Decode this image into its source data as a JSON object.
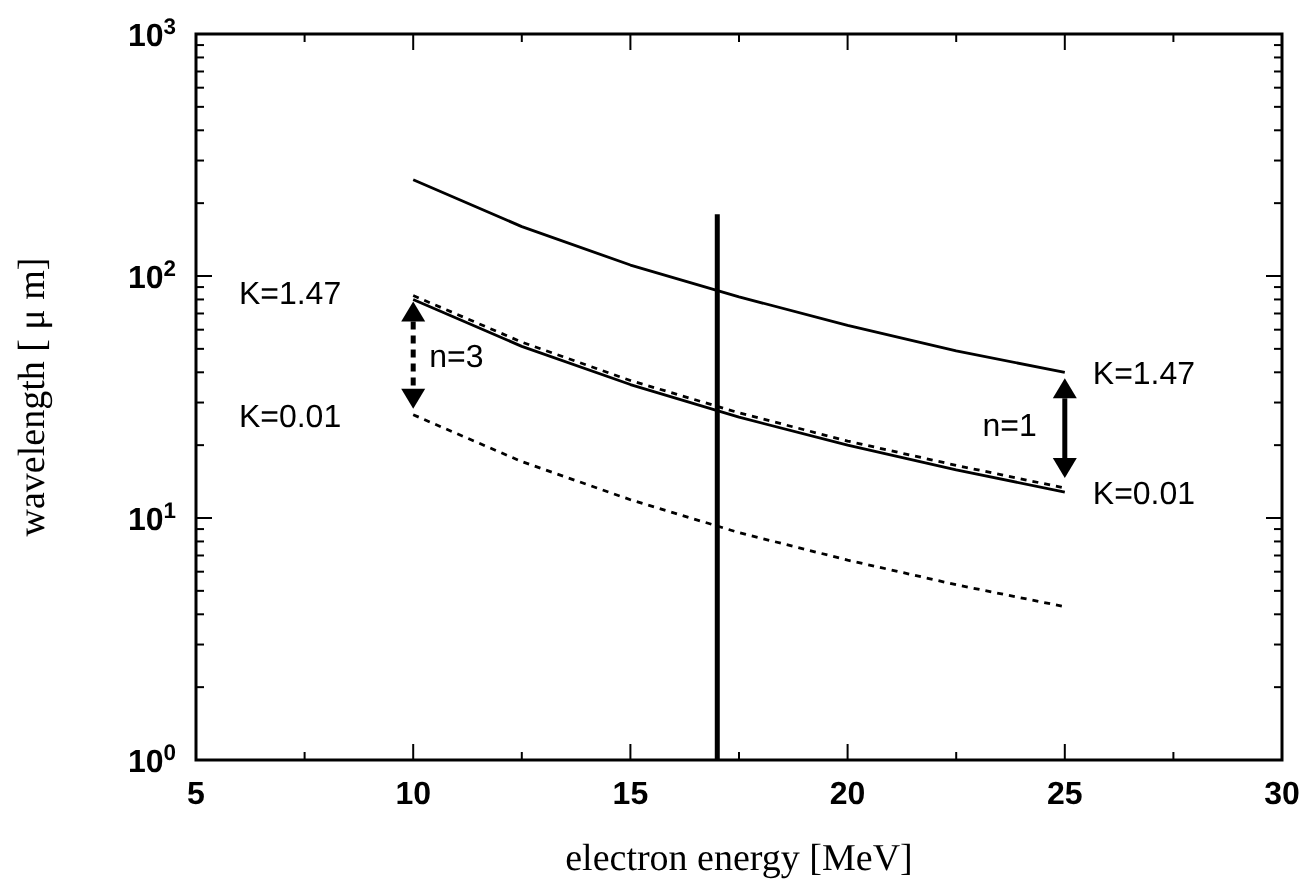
{
  "chart_data": {
    "type": "line",
    "xlabel": "electron energy [MeV]",
    "ylabel": "wavelength [ μ m]",
    "log": "y",
    "xlim": [
      5,
      30
    ],
    "xticks": [
      5,
      10,
      15,
      20,
      25,
      30
    ],
    "ylim": [
      1,
      1000
    ],
    "yticks": [
      {
        "value": 1,
        "label": "10$^{0}$"
      },
      {
        "value": 10,
        "label": "10$^{1}$"
      },
      {
        "value": 100,
        "label": "10$^{2}$"
      },
      {
        "value": 1000,
        "label": "10$^{3}$"
      }
    ],
    "grid": false,
    "marker": "none",
    "x": [
      10,
      12.5,
      15,
      17.5,
      20,
      22.5,
      25
    ],
    "series": [
      {
        "color": "#000000",
        "line_style": "solid",
        "values": [
          250,
          160,
          111,
          82,
          62.5,
          49,
          40
        ]
      },
      {
        "color": "#000000",
        "line_style": "solid",
        "values": [
          80,
          51.2,
          35.6,
          26.1,
          20,
          15.8,
          12.8
        ]
      },
      {
        "color": "#000000",
        "line_style": "dotted",
        "values": [
          83,
          53.3,
          37,
          27.2,
          20.8,
          16.5,
          13.3
        ]
      },
      {
        "color": "#000000",
        "line_style": "dotted",
        "values": [
          26.7,
          17.1,
          11.9,
          8.7,
          6.7,
          5.3,
          4.3
        ]
      }
    ],
    "ref_lines": [
      {
        "axis": "x",
        "value": 17,
        "color": "#000000"
      }
    ],
    "annotations": [
      "K=1.47",
      "K=0.01",
      "n=3",
      "n=1",
      "K=1.47",
      "K=0.01"
    ]
  }
}
